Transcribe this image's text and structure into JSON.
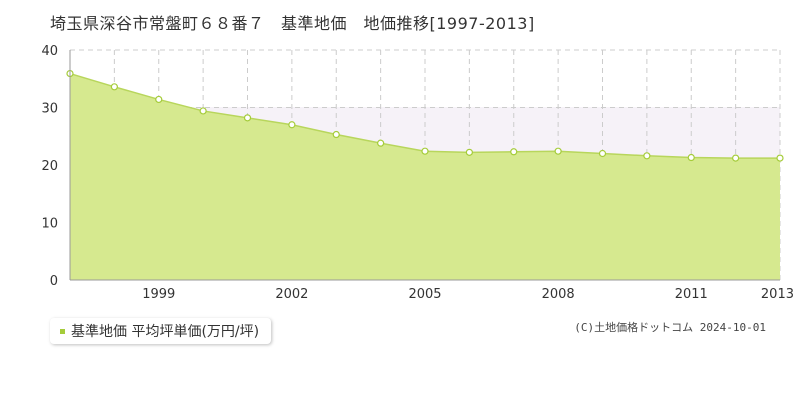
{
  "title": "埼玉県深谷市常盤町６８番７　基準地価　地価推移[1997-2013]",
  "copyright": "(C)土地価格ドットコム 2024-10-01",
  "colors": {
    "area_fill": "#d6e98f",
    "area_line": "#b8d65c",
    "marker_stroke": "#a5cc3a",
    "band_fill": "#f6f2f8",
    "grid": "#cccccc"
  },
  "chart_data": {
    "type": "area",
    "title": "",
    "xlabel": "",
    "ylabel": "",
    "xlim": [
      1997,
      2013
    ],
    "ylim": [
      0,
      40
    ],
    "y_ticks": [
      "0",
      "10",
      "20",
      "30",
      "40"
    ],
    "x_ticks": [
      "1999",
      "2002",
      "2005",
      "2008",
      "2011",
      "2013"
    ],
    "grid": true,
    "legend_placement": "bottom-left",
    "series": [
      {
        "name": "基準地価 平均坪単価(万円/坪)",
        "x": [
          1997,
          1998,
          1999,
          2000,
          2001,
          2002,
          2003,
          2004,
          2005,
          2006,
          2007,
          2008,
          2009,
          2010,
          2011,
          2012,
          2013
        ],
        "values": [
          35.9,
          33.6,
          31.4,
          29.4,
          28.2,
          27.0,
          25.3,
          23.8,
          22.4,
          22.2,
          22.3,
          22.4,
          22.0,
          21.6,
          21.3,
          21.2,
          21.2
        ]
      }
    ]
  }
}
